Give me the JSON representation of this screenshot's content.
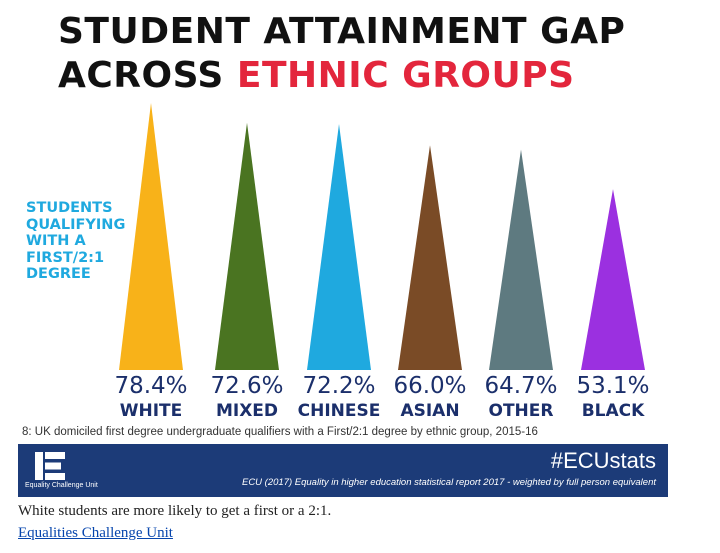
{
  "title_line1": "STUDENT ATTAINMENT GAP",
  "title_line2_black": "ACROSS ",
  "title_line2_red": "ETHNIC GROUPS",
  "caption": "8: UK domiciled first degree undergraduate qualifiers with a First/2:1 degree by ethnic group, 2015-16",
  "footer": {
    "logo_text": "Equality Challenge Unit",
    "hashtag": "#ECUstats",
    "source": "ECU (2017) Equality in higher education statistical report 2017 - weighted by full person equivalent"
  },
  "article_caption": "White students are more likely to get a first or a 2:1.",
  "credit_link": "Equalities Challenge Unit",
  "colors": {
    "title_accent": "#e3263c",
    "side_label": "#1fa9df",
    "value_text": "#1b2f6b",
    "footer_bg": "#1c3b78",
    "link": "#0645ad"
  },
  "chart_data": {
    "type": "bar",
    "mark_shape": "triangle",
    "title": "STUDENT ATTAINMENT GAP ACROSS ETHNIC GROUPS",
    "ylabel": "STUDENTS QUALIFYING WITH A FIRST/2:1 DEGREE",
    "categories": [
      "WHITE",
      "MIXED",
      "CHINESE",
      "ASIAN",
      "OTHER",
      "BLACK"
    ],
    "values": [
      78.4,
      72.6,
      72.2,
      66.0,
      64.7,
      53.1
    ],
    "value_labels": [
      "78.4%",
      "72.6%",
      "72.2%",
      "66.0%",
      "64.7%",
      "53.1%"
    ],
    "colors": [
      "#f8b219",
      "#4a7421",
      "#1fa9df",
      "#7a4b26",
      "#5e7a80",
      "#9b30e0"
    ],
    "grid": false,
    "legend": "none"
  }
}
